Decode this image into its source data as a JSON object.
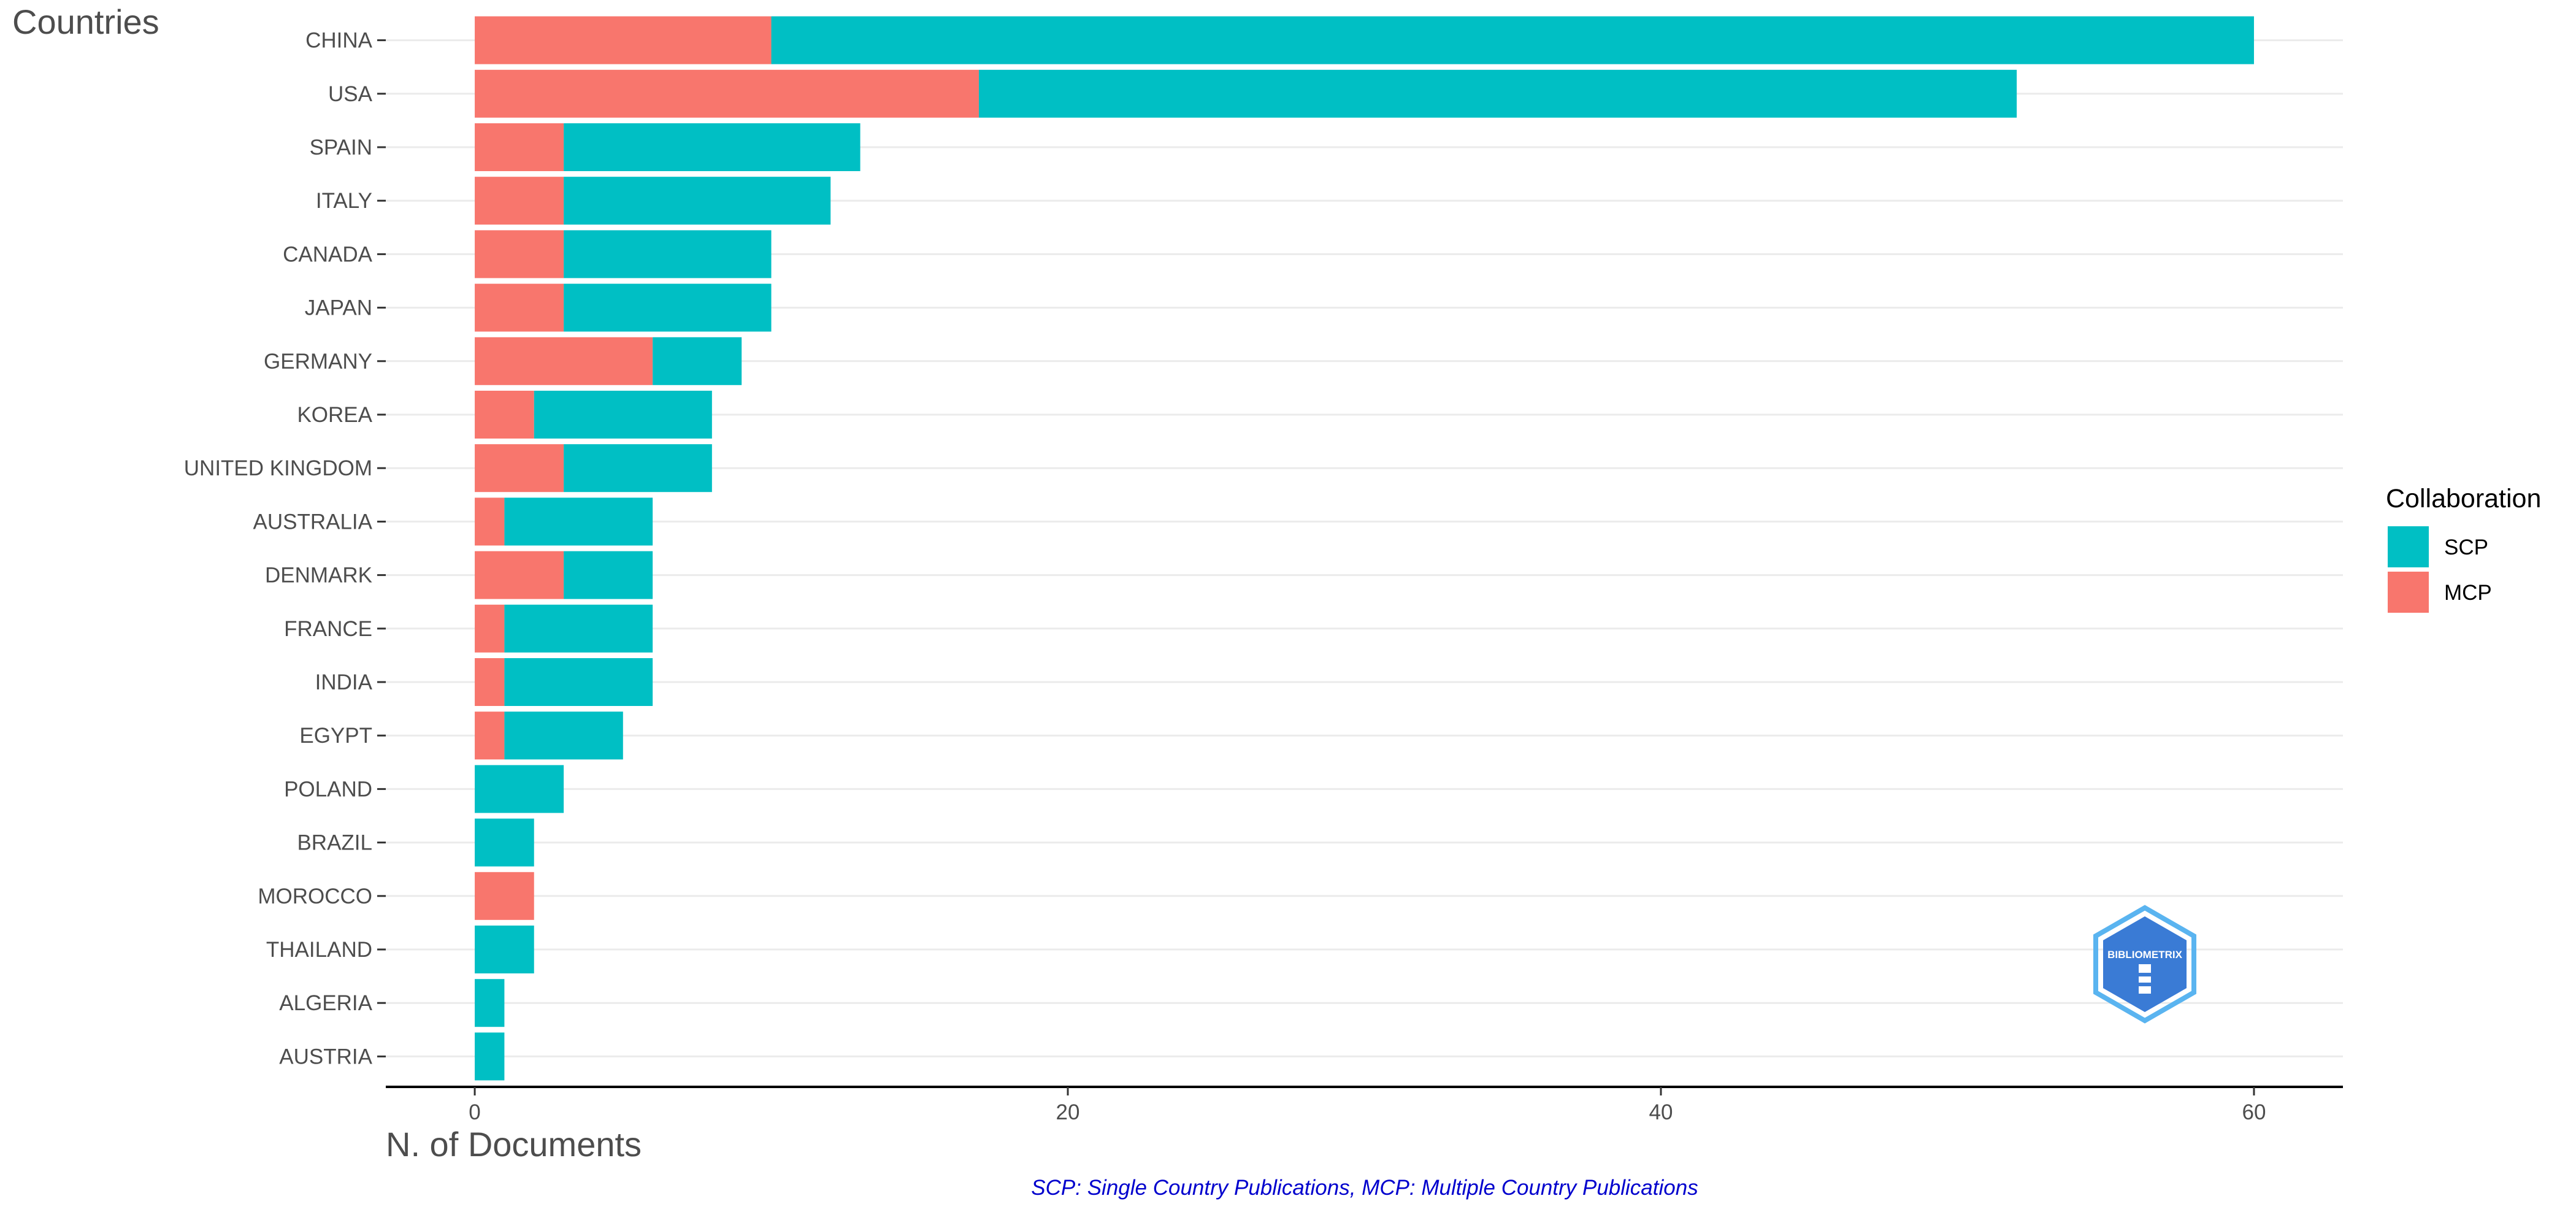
{
  "colors": {
    "scp": "#00BFC4",
    "mcp": "#F8766D",
    "caption": "#0000CD",
    "logo": "#3A7BD5"
  },
  "logo": {
    "text": "BIBLIOMETRIX"
  },
  "chart_data": {
    "type": "bar",
    "orientation": "horizontal",
    "stacked": true,
    "ylabel": "Countries",
    "xlabel": "N. of Documents",
    "caption": "SCP: Single Country Publications, MCP: Multiple Country Publications",
    "categories": [
      "CHINA",
      "USA",
      "SPAIN",
      "ITALY",
      "CANADA",
      "JAPAN",
      "GERMANY",
      "KOREA",
      "UNITED KINGDOM",
      "AUSTRALIA",
      "DENMARK",
      "FRANCE",
      "INDIA",
      "EGYPT",
      "POLAND",
      "BRAZIL",
      "MOROCCO",
      "THAILAND",
      "ALGERIA",
      "AUSTRIA"
    ],
    "series": [
      {
        "name": "MCP",
        "values": [
          10,
          17,
          3,
          3,
          3,
          3,
          6,
          2,
          3,
          1,
          3,
          1,
          1,
          1,
          0,
          0,
          2,
          0,
          0,
          0
        ]
      },
      {
        "name": "SCP",
        "values": [
          50,
          35,
          10,
          9,
          7,
          7,
          3,
          6,
          5,
          5,
          3,
          5,
          5,
          4,
          3,
          2,
          0,
          2,
          1,
          1
        ]
      }
    ],
    "xlim": [
      -3,
      63
    ],
    "xticks": [
      "0",
      "20",
      "40",
      "60"
    ],
    "legend": {
      "title": "Collaboration",
      "position": "right",
      "entries": [
        "SCP",
        "MCP"
      ]
    },
    "grid": true
  }
}
